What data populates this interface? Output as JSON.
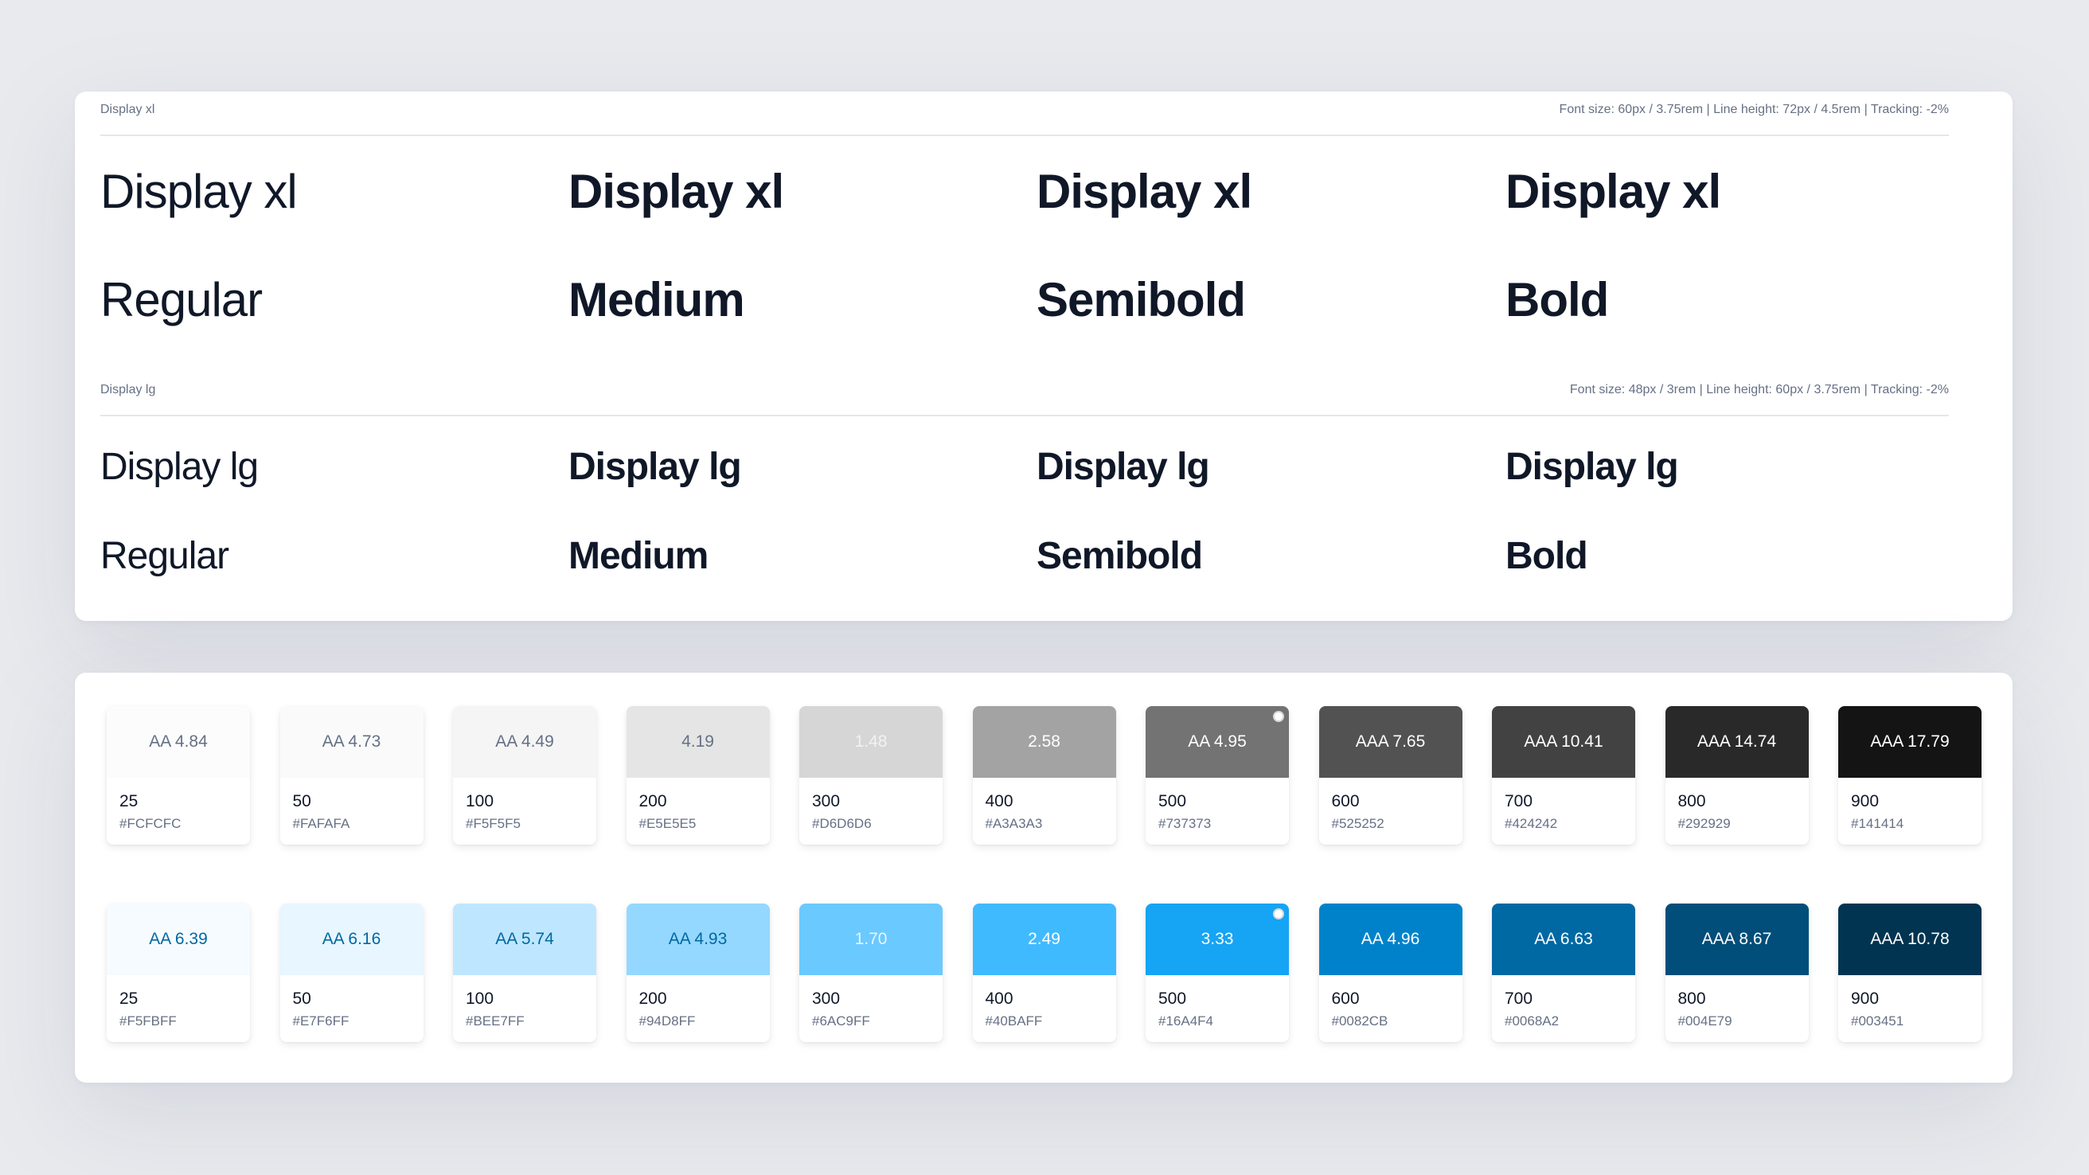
{
  "typography": {
    "display_xl": {
      "label": "Display xl",
      "spec": "Font size: 60px / 3.75rem | Line height: 72px / 4.5rem | Tracking: -2%",
      "sample": [
        "Display xl",
        "Display xl",
        "Display xl",
        "Display xl"
      ],
      "weights": [
        "Regular",
        "Medium",
        "Semibold",
        "Bold"
      ]
    },
    "display_lg": {
      "label": "Display lg",
      "spec": "Font size: 48px / 3rem | Line height: 60px / 3.75rem | Tracking: -2%",
      "sample": [
        "Display lg",
        "Display lg",
        "Display lg",
        "Display lg"
      ],
      "weights": [
        "Regular",
        "Medium",
        "Semibold",
        "Bold"
      ]
    }
  },
  "palettes": {
    "gray": [
      {
        "contrast": "AA 4.84",
        "step": "25",
        "hex": "#FCFCFC",
        "text_color": "#667085"
      },
      {
        "contrast": "AA 4.73",
        "step": "50",
        "hex": "#FAFAFA",
        "text_color": "#667085"
      },
      {
        "contrast": "AA 4.49",
        "step": "100",
        "hex": "#F5F5F5",
        "text_color": "#667085"
      },
      {
        "contrast": "4.19",
        "step": "200",
        "hex": "#E5E5E5",
        "text_color": "#667085"
      },
      {
        "contrast": "1.48",
        "step": "300",
        "hex": "#D6D6D6",
        "text_color": "#F2F2F2"
      },
      {
        "contrast": "2.58",
        "step": "400",
        "hex": "#A3A3A3",
        "text_color": "#FFFFFF"
      },
      {
        "contrast": "AA 4.95",
        "step": "500",
        "hex": "#737373",
        "text_color": "#FFFFFF",
        "marker": true
      },
      {
        "contrast": "AAA 7.65",
        "step": "600",
        "hex": "#525252",
        "text_color": "#FFFFFF"
      },
      {
        "contrast": "AAA 10.41",
        "step": "700",
        "hex": "#424242",
        "text_color": "#FFFFFF"
      },
      {
        "contrast": "AAA 14.74",
        "step": "800",
        "hex": "#292929",
        "text_color": "#FFFFFF"
      },
      {
        "contrast": "AAA 17.79",
        "step": "900",
        "hex": "#141414",
        "text_color": "#FFFFFF"
      }
    ],
    "blue": [
      {
        "contrast": "AA 6.39",
        "step": "25",
        "hex": "#F5FBFF",
        "text_color": "#0068A2"
      },
      {
        "contrast": "AA 6.16",
        "step": "50",
        "hex": "#E7F6FF",
        "text_color": "#0068A2"
      },
      {
        "contrast": "AA 5.74",
        "step": "100",
        "hex": "#BEE7FF",
        "text_color": "#0068A2"
      },
      {
        "contrast": "AA 4.93",
        "step": "200",
        "hex": "#94D8FF",
        "text_color": "#0068A2"
      },
      {
        "contrast": "1.70",
        "step": "300",
        "hex": "#6AC9FF",
        "text_color": "#E7F6FF"
      },
      {
        "contrast": "2.49",
        "step": "400",
        "hex": "#40BAFF",
        "text_color": "#FFFFFF"
      },
      {
        "contrast": "3.33",
        "step": "500",
        "hex": "#16A4F4",
        "text_color": "#FFFFFF",
        "marker": true
      },
      {
        "contrast": "AA 4.96",
        "step": "600",
        "hex": "#0082CB",
        "text_color": "#FFFFFF"
      },
      {
        "contrast": "AA 6.63",
        "step": "700",
        "hex": "#0068A2",
        "text_color": "#FFFFFF"
      },
      {
        "contrast": "AAA 8.67",
        "step": "800",
        "hex": "#004E79",
        "text_color": "#FFFFFF"
      },
      {
        "contrast": "AAA 10.78",
        "step": "900",
        "hex": "#003451",
        "text_color": "#FFFFFF"
      }
    ]
  }
}
